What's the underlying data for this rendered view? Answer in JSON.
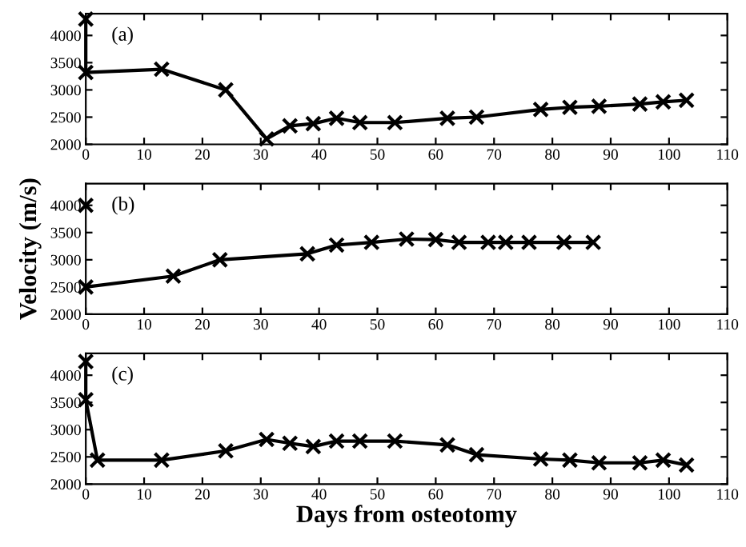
{
  "chart_data": [
    {
      "type": "line",
      "x": [
        0,
        0,
        13,
        24,
        31,
        35,
        39,
        43,
        47,
        53,
        62,
        67,
        78,
        83,
        88,
        95,
        99,
        103
      ],
      "annotations": [
        "(a)"
      ],
      "xlim": [
        0,
        110
      ],
      "xticks": [
        0,
        10,
        20,
        30,
        40,
        50,
        60,
        70,
        80,
        90,
        100,
        110
      ],
      "ylim": [
        2000,
        4400
      ],
      "yticks": [
        2000,
        2500,
        3000,
        3500,
        4000
      ],
      "marker": "cross",
      "line_style": "solid",
      "grid": false,
      "legend": false,
      "series": [
        {
          "color": "#000000",
          "values": [
            4300,
            3320,
            3380,
            3000,
            2100,
            2340,
            2380,
            2480,
            2400,
            2400,
            2480,
            2500,
            2640,
            2680,
            2700,
            2740,
            2780,
            2810
          ]
        }
      ]
    },
    {
      "type": "line",
      "ylabel": "Velocity (m/s)",
      "annotations": [
        "(b)"
      ],
      "xlim": [
        0,
        110
      ],
      "xticks": [
        0,
        10,
        20,
        30,
        40,
        50,
        60,
        70,
        80,
        90,
        100,
        110
      ],
      "ylim": [
        2000,
        4400
      ],
      "yticks": [
        2000,
        2500,
        3000,
        3500,
        4000
      ],
      "marker": "cross",
      "line_style": "solid",
      "grid": false,
      "legend": false,
      "series": [
        {
          "type": "scatter",
          "color": "#000000",
          "x": [
            0
          ],
          "values": [
            4000
          ]
        },
        {
          "color": "#000000",
          "x": [
            0,
            15,
            23,
            38,
            43,
            49,
            55,
            60,
            64,
            69,
            72,
            76,
            82,
            87
          ],
          "values": [
            2500,
            2700,
            3000,
            3110,
            3270,
            3320,
            3380,
            3370,
            3320,
            3320,
            3320,
            3320,
            3320,
            3320
          ]
        }
      ]
    },
    {
      "type": "line",
      "xlabel": "Days from osteotomy",
      "annotations": [
        "(c)"
      ],
      "x": [
        0,
        0,
        2,
        13,
        24,
        31,
        35,
        39,
        43,
        47,
        53,
        62,
        67,
        78,
        83,
        88,
        95,
        99,
        103
      ],
      "xlim": [
        0,
        110
      ],
      "xticks": [
        0,
        10,
        20,
        30,
        40,
        50,
        60,
        70,
        80,
        90,
        100,
        110
      ],
      "ylim": [
        2000,
        4400
      ],
      "yticks": [
        2000,
        2500,
        3000,
        3500,
        4000
      ],
      "marker": "cross",
      "line_style": "solid",
      "grid": false,
      "legend": false,
      "series": [
        {
          "color": "#000000",
          "values": [
            4250,
            3550,
            2440,
            2440,
            2610,
            2820,
            2750,
            2690,
            2790,
            2790,
            2790,
            2720,
            2540,
            2460,
            2440,
            2390,
            2390,
            2440,
            2350
          ]
        }
      ]
    }
  ]
}
